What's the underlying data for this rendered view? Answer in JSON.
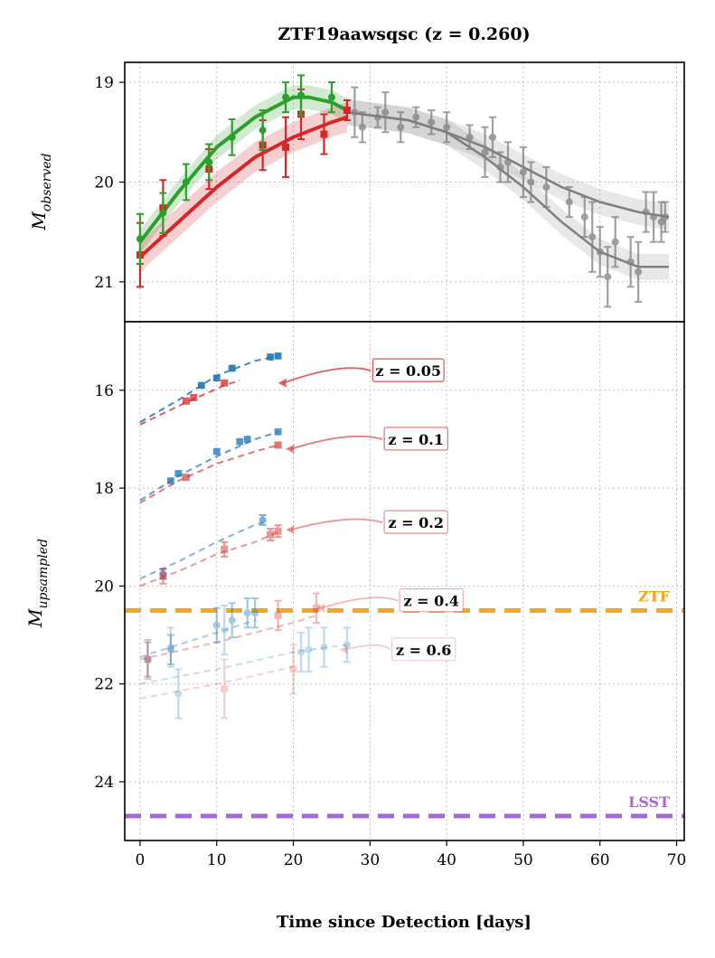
{
  "chart_data": {
    "title": "ZTF19aawsqsc (z = 0.260)",
    "xlabel": "Time since Detection [days]",
    "xlim": [
      -2,
      71
    ],
    "xticks": [
      "0",
      "10",
      "20",
      "30",
      "40",
      "50",
      "60",
      "70"
    ],
    "grid": true,
    "colors": {
      "green": "#2ca02c",
      "red": "#d62728",
      "gray": "#7f7f7f",
      "ztf": "#f5a623",
      "lsst": "#a36ad0",
      "blue": "#1f77b4"
    },
    "top_panel": {
      "type": "scatter",
      "ylabel_main": "M",
      "ylabel_sub": "observed",
      "ylim": [
        21.4,
        18.8
      ],
      "yticks": [
        "19",
        "20",
        "21"
      ],
      "series": [
        {
          "name": "green-observed",
          "points": [
            [
              0,
              20.57,
              0.25
            ],
            [
              3,
              20.31,
              0.2
            ],
            [
              6,
              20.0,
              0.18
            ],
            [
              9,
              19.8,
              0.18
            ],
            [
              12,
              19.55,
              0.18
            ],
            [
              16,
              19.48,
              0.2
            ],
            [
              19,
              19.15,
              0.15
            ],
            [
              21,
              19.13,
              0.2
            ],
            [
              25,
              19.15,
              0.15
            ]
          ],
          "fit": [
            [
              0,
              20.6
            ],
            [
              5,
              20.1
            ],
            [
              10,
              19.65
            ],
            [
              15,
              19.35
            ],
            [
              20,
              19.15
            ],
            [
              22,
              19.15
            ],
            [
              25,
              19.2
            ],
            [
              27,
              19.28
            ]
          ]
        },
        {
          "name": "red-observed",
          "points": [
            [
              0,
              20.73,
              0.32
            ],
            [
              3,
              20.26,
              0.28
            ],
            [
              9,
              19.87,
              0.2
            ],
            [
              16,
              19.63,
              0.25
            ],
            [
              19,
              19.65,
              0.3
            ],
            [
              21,
              19.32,
              0.25
            ],
            [
              24,
              19.52,
              0.2
            ],
            [
              27,
              19.28,
              0.1
            ]
          ],
          "fit": [
            [
              0,
              20.75
            ],
            [
              5,
              20.4
            ],
            [
              10,
              20.05
            ],
            [
              15,
              19.75
            ],
            [
              20,
              19.55
            ],
            [
              25,
              19.4
            ],
            [
              27,
              19.35
            ]
          ]
        },
        {
          "name": "gray-continuation",
          "points": [
            [
              28,
              19.3,
              0.25
            ],
            [
              29,
              19.45,
              0.15
            ],
            [
              31,
              19.35,
              0.1
            ],
            [
              32,
              19.3,
              0.2
            ],
            [
              34,
              19.45,
              0.15
            ],
            [
              36,
              19.35,
              0.1
            ],
            [
              38,
              19.4,
              0.12
            ],
            [
              40,
              19.45,
              0.15
            ],
            [
              43,
              19.55,
              0.12
            ],
            [
              45,
              19.7,
              0.25
            ],
            [
              46,
              19.55,
              0.2
            ],
            [
              47,
              19.85,
              0.15
            ],
            [
              48,
              19.8,
              0.2
            ],
            [
              50,
              19.9,
              0.25
            ],
            [
              51,
              20.0,
              0.2
            ],
            [
              53,
              20.05,
              0.2
            ],
            [
              56,
              20.2,
              0.15
            ],
            [
              58,
              20.35,
              0.2
            ],
            [
              59,
              20.55,
              0.35
            ],
            [
              60,
              20.7,
              0.25
            ],
            [
              61,
              20.95,
              0.3
            ],
            [
              62,
              20.6,
              0.25
            ],
            [
              64,
              20.8,
              0.25
            ],
            [
              65,
              20.9,
              0.3
            ],
            [
              66,
              20.3,
              0.2
            ],
            [
              67,
              20.35,
              0.25
            ],
            [
              68,
              20.4,
              0.2
            ],
            [
              68.5,
              20.35,
              0.15
            ]
          ],
          "fit_upper": [
            [
              27,
              19.3
            ],
            [
              35,
              19.38
            ],
            [
              40,
              19.5
            ],
            [
              45,
              19.65
            ],
            [
              50,
              19.85
            ],
            [
              55,
              20.05
            ],
            [
              60,
              20.2
            ],
            [
              65,
              20.3
            ],
            [
              69,
              20.35
            ]
          ],
          "fit_lower": [
            [
              27,
              19.3
            ],
            [
              35,
              19.38
            ],
            [
              40,
              19.5
            ],
            [
              45,
              19.75
            ],
            [
              50,
              20.05
            ],
            [
              55,
              20.4
            ],
            [
              60,
              20.7
            ],
            [
              65,
              20.85
            ],
            [
              69,
              20.85
            ]
          ]
        }
      ]
    },
    "bottom_panel": {
      "type": "scatter",
      "ylabel_main": "M",
      "ylabel_sub": "upsampled",
      "ylim": [
        25.2,
        14.6
      ],
      "yticks": [
        "16",
        "18",
        "20",
        "22",
        "24"
      ],
      "limits": [
        {
          "name": "ZTF",
          "value": 20.5
        },
        {
          "name": "LSST",
          "value": 24.7
        }
      ],
      "redshift_groups": [
        {
          "label": "z = 0.05",
          "alpha": 1.0,
          "label_at": [
            35,
            15.6
          ],
          "arrow_to": [
            18,
            15.85
          ],
          "blue": [
            [
              8,
              15.9,
              0.05
            ],
            [
              10,
              15.75,
              0.05
            ],
            [
              12,
              15.55,
              0.05
            ],
            [
              17,
              15.32,
              0.05
            ],
            [
              18,
              15.3,
              0.05
            ]
          ],
          "red": [
            [
              6,
              16.22,
              0.05
            ],
            [
              7,
              16.15,
              0.05
            ],
            [
              11,
              15.85,
              0.05
            ]
          ],
          "blue_fit": [
            [
              0,
              16.65
            ],
            [
              5,
              16.2
            ],
            [
              10,
              15.7
            ],
            [
              15,
              15.4
            ],
            [
              18,
              15.3
            ]
          ],
          "red_fit": [
            [
              0,
              16.7
            ],
            [
              6,
              16.25
            ],
            [
              11,
              15.9
            ],
            [
              13,
              15.8
            ]
          ]
        },
        {
          "label": "z = 0.1",
          "alpha": 0.85,
          "label_at": [
            36,
            17.0
          ],
          "arrow_to": [
            19,
            17.2
          ],
          "blue": [
            [
              4,
              17.85,
              0.05
            ],
            [
              5,
              17.7,
              0.05
            ],
            [
              10,
              17.25,
              0.05
            ],
            [
              13,
              17.05,
              0.05
            ],
            [
              14,
              17.0,
              0.05
            ],
            [
              18,
              16.85,
              0.05
            ]
          ],
          "red": [
            [
              6,
              17.78,
              0.05
            ],
            [
              18,
              17.12,
              0.05
            ]
          ],
          "blue_fit": [
            [
              0,
              18.25
            ],
            [
              5,
              17.75
            ],
            [
              10,
              17.35
            ],
            [
              15,
              17.0
            ],
            [
              18,
              16.85
            ]
          ],
          "red_fit": [
            [
              0,
              18.3
            ],
            [
              5,
              17.85
            ],
            [
              10,
              17.5
            ],
            [
              15,
              17.25
            ],
            [
              18,
              17.12
            ]
          ]
        },
        {
          "label": "z = 0.2",
          "alpha": 0.65,
          "label_at": [
            36,
            18.7
          ],
          "arrow_to": [
            19,
            18.85
          ],
          "blue": [
            [
              3,
              19.75,
              0.1
            ],
            [
              16,
              18.65,
              0.1
            ]
          ],
          "red": [
            [
              3,
              19.8,
              0.15
            ],
            [
              11,
              19.25,
              0.15
            ],
            [
              17,
              18.95,
              0.12
            ],
            [
              18,
              18.88,
              0.12
            ]
          ],
          "blue_fit": [
            [
              0,
              19.85
            ],
            [
              5,
              19.5
            ],
            [
              10,
              19.1
            ],
            [
              15,
              18.75
            ],
            [
              16,
              18.7
            ]
          ],
          "red_fit": [
            [
              0,
              20.0
            ],
            [
              5,
              19.7
            ],
            [
              10,
              19.35
            ],
            [
              15,
              19.1
            ],
            [
              18,
              18.9
            ]
          ]
        },
        {
          "label": "z = 0.4",
          "alpha": 0.45,
          "label_at": [
            38,
            20.3
          ],
          "arrow_to": [
            23,
            20.45
          ],
          "blue": [
            [
              1,
              21.5,
              0.35
            ],
            [
              4,
              21.3,
              0.3
            ],
            [
              10,
              20.8,
              0.35
            ],
            [
              12,
              20.7,
              0.35
            ],
            [
              14,
              20.55,
              0.3
            ],
            [
              15,
              20.55,
              0.3
            ]
          ],
          "red": [
            [
              1,
              21.5,
              0.4
            ],
            [
              18,
              20.6,
              0.3
            ],
            [
              23,
              20.45,
              0.3
            ]
          ],
          "blue_fit": [
            [
              0,
              21.45
            ],
            [
              5,
              21.2
            ],
            [
              10,
              20.95
            ],
            [
              15,
              20.7
            ]
          ],
          "red_fit": [
            [
              0,
              21.5
            ],
            [
              10,
              21.15
            ],
            [
              20,
              20.75
            ],
            [
              23,
              20.6
            ]
          ]
        },
        {
          "label": "z = 0.6",
          "alpha": 0.3,
          "label_at": [
            37,
            21.3
          ],
          "arrow_to": [
            26,
            21.3
          ],
          "blue": [
            [
              4,
              21.25,
              0.4
            ],
            [
              5,
              22.2,
              0.5
            ],
            [
              11,
              20.9,
              0.5
            ],
            [
              21,
              21.35,
              0.4
            ],
            [
              22,
              21.3,
              0.45
            ],
            [
              24,
              21.25,
              0.4
            ],
            [
              27,
              21.2,
              0.35
            ]
          ],
          "red": [
            [
              11,
              22.1,
              0.6
            ],
            [
              20,
              21.7,
              0.5
            ]
          ],
          "blue_fit": [
            [
              0,
              22.0
            ],
            [
              10,
              21.7
            ],
            [
              20,
              21.35
            ],
            [
              27,
              21.2
            ]
          ],
          "red_fit": [
            [
              0,
              22.3
            ],
            [
              10,
              22.0
            ],
            [
              20,
              21.65
            ]
          ]
        }
      ]
    }
  }
}
